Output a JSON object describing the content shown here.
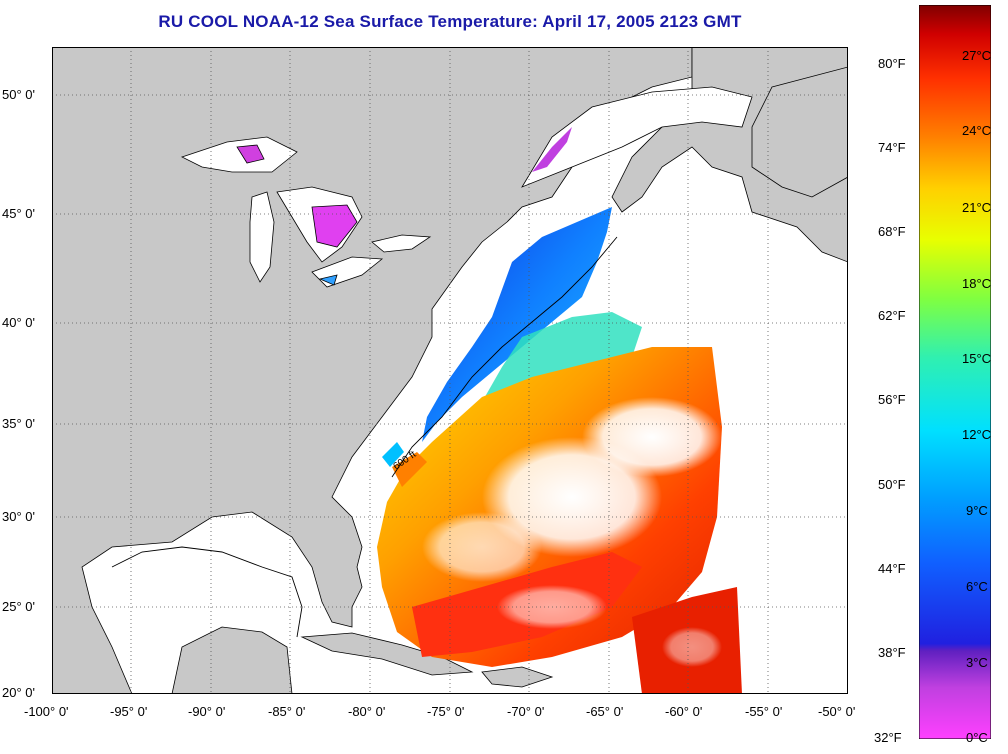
{
  "title": "RU COOL  NOAA-12  Sea Surface Temperature:  April 17, 2005 2123 GMT",
  "map": {
    "lon_labels": [
      "-100° 0'",
      "-95° 0'",
      "-90° 0'",
      "-85° 0'",
      "-80° 0'",
      "-75° 0'",
      "-70° 0'",
      "-65° 0'",
      "-60° 0'",
      "-55° 0'",
      "-50° 0'"
    ],
    "lat_labels": [
      "50° 0'",
      "45° 0'",
      "40° 0'",
      "35° 0'",
      "30° 0'",
      "25° 0'",
      "20° 0'"
    ],
    "contour_label": "600 ft",
    "colors": {
      "land": "#c8c8c8",
      "water_no_data": "#ffffff"
    }
  },
  "colorbar": {
    "fahrenheit_labels": [
      "80°F",
      "74°F",
      "68°F",
      "62°F",
      "56°F",
      "50°F",
      "44°F",
      "38°F",
      "32°F"
    ],
    "celsius_labels": [
      "27°C",
      "24°C",
      "21°C",
      "18°C",
      "15°C",
      "12°C",
      "9°C",
      "6°C",
      "3°C",
      "0°C"
    ],
    "colors": [
      "#ff40ff",
      "#c040e0",
      "#6020c0",
      "#2020e0",
      "#1060ff",
      "#00a0ff",
      "#00e0ff",
      "#30f0b0",
      "#80ff40",
      "#e8ff00",
      "#ffd000",
      "#ff8000",
      "#ff3000",
      "#d00000",
      "#800000"
    ]
  }
}
